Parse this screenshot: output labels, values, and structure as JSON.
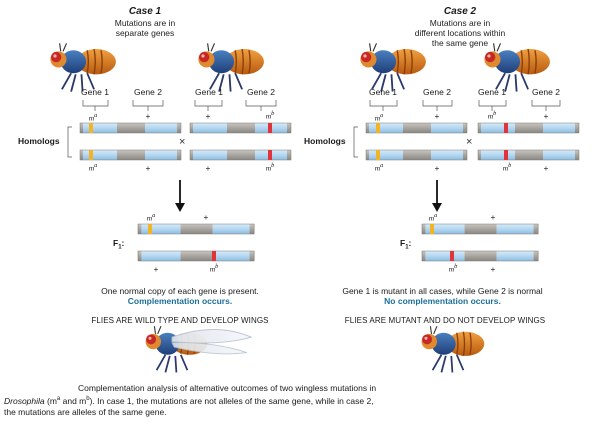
{
  "case1": {
    "title": "Case 1",
    "subtitle_line1": "Mutations are in",
    "subtitle_line2": "separate genes",
    "gene1": "Gene 1",
    "gene2": "Gene 2",
    "gene1b": "Gene 1",
    "gene2b": "Gene 2",
    "homologs": "Homologs",
    "allele_a": "m",
    "allele_b": "m",
    "sup_a": "a",
    "sup_b": "b",
    "plus": "+",
    "times": "×",
    "f1": "F",
    "f1_sub": "1",
    "message": "One normal copy of each gene is present.",
    "outcome": "Complementation occurs.",
    "result": "FLIES ARE WILD TYPE AND DEVELOP WINGS"
  },
  "case2": {
    "title": "Case 2",
    "subtitle_line1": "Mutations are in",
    "subtitle_line2": "different locations within",
    "subtitle_line3": "the same gene",
    "gene1": "Gene 1",
    "gene2": "Gene 2",
    "gene1b": "Gene 1",
    "gene2b": "Gene 2",
    "homologs": "Homologs",
    "allele_a": "m",
    "allele_b": "m",
    "sup_a": "a",
    "sup_b": "b",
    "plus": "+",
    "times": "×",
    "f1": "F",
    "f1_sub": "1",
    "message": "Gene 1 is mutant in all cases, while Gene 2 is normal",
    "outcome": "No complementation occurs.",
    "result": "FLIES ARE MUTANT AND DO NOT DEVELOP WINGS"
  },
  "caption": {
    "line1": "Complementation analysis of alternative outcomes of two wingless mutations in",
    "line2_italic": "Drosophila",
    "line2_rest": " (m",
    "line2_a": "a",
    "line2_mid": " and m",
    "line2_b": "b",
    "line2_end": "). In case 1, the mutations are not alleles of the same gene, while in case 2,",
    "line3": "the mutations are alleles of the same gene."
  },
  "colors": {
    "gene_blue": "#b8daf2",
    "spacer_gray": "#a8a49f",
    "mutation_a": "#f2b424",
    "mutation_b": "#e0343a",
    "outcome_blue": "#1a6f9a"
  }
}
